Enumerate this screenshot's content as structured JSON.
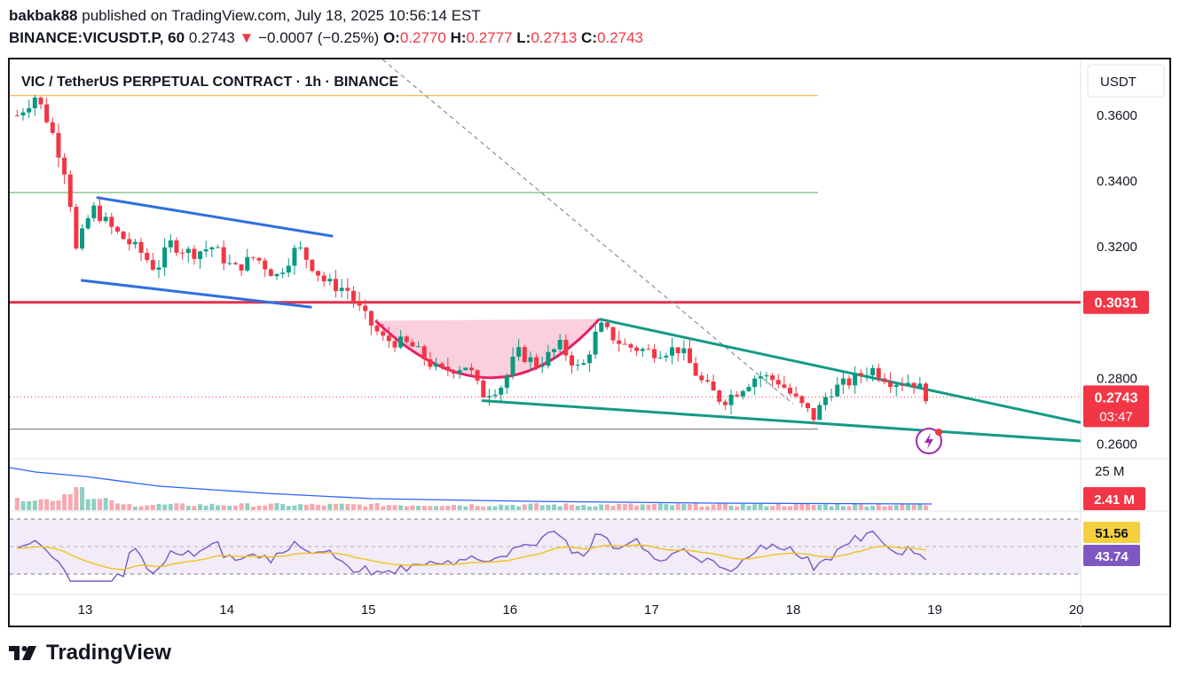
{
  "header": {
    "author": "bakbak88",
    "published_text": "published on TradingView.com, July 18, 2025 10:56:14 EST",
    "symbol": "BINANCE:VICUSDT.P, 60",
    "last": "0.2743",
    "change_arrow": "▼",
    "change": "−0.0007 (−0.25%)",
    "o_label": "O:",
    "o_value": "0.2770",
    "h_label": "H:",
    "h_value": "0.2777",
    "l_label": "L:",
    "l_value": "0.2713",
    "c_label": "C:",
    "c_value": "0.2743"
  },
  "footer": {
    "logo_text": "TradingView"
  },
  "chart_data": {
    "type": "candlestick",
    "title": "VIC / TetherUS PERPETUAL CONTRACT · 1h · BINANCE",
    "currency": "USDT",
    "x_ticks": [
      "13",
      "14",
      "15",
      "16",
      "17",
      "18",
      "19",
      "20"
    ],
    "y_ticks": [
      "0.3600",
      "0.3400",
      "0.3200",
      "0.2800",
      "0.2600"
    ],
    "ylim": [
      0.2555,
      0.377
    ],
    "price_labels": [
      {
        "text": "0.3031",
        "color": "#f23645"
      },
      {
        "text": "0.2743",
        "color": "#f23645"
      },
      {
        "text": "03:47",
        "color": "#f23645"
      }
    ],
    "horizontal_lines": [
      {
        "price": 0.366,
        "color": "#f5a623"
      },
      {
        "price": 0.3365,
        "color": "#4caf50"
      },
      {
        "price": 0.3031,
        "color": "#e0314b"
      },
      {
        "price": 0.2645,
        "color": "#6a6d78"
      }
    ],
    "close_path": [
      {
        "day": 12.52,
        "price": 0.36
      },
      {
        "day": 12.65,
        "price": 0.366
      },
      {
        "day": 12.75,
        "price": 0.357
      },
      {
        "day": 12.88,
        "price": 0.34
      },
      {
        "day": 12.93,
        "price": 0.318
      },
      {
        "day": 13.05,
        "price": 0.332
      },
      {
        "day": 13.2,
        "price": 0.325
      },
      {
        "day": 13.4,
        "price": 0.318
      },
      {
        "day": 13.5,
        "price": 0.313
      },
      {
        "day": 13.6,
        "price": 0.321
      },
      {
        "day": 13.75,
        "price": 0.318
      },
      {
        "day": 13.9,
        "price": 0.32
      },
      {
        "day": 14.05,
        "price": 0.313
      },
      {
        "day": 14.2,
        "price": 0.317
      },
      {
        "day": 14.35,
        "price": 0.311
      },
      {
        "day": 14.5,
        "price": 0.32
      },
      {
        "day": 14.7,
        "price": 0.309
      },
      {
        "day": 14.85,
        "price": 0.307
      },
      {
        "day": 14.95,
        "price": 0.3
      },
      {
        "day": 15.1,
        "price": 0.292
      },
      {
        "day": 15.3,
        "price": 0.29
      },
      {
        "day": 15.5,
        "price": 0.282
      },
      {
        "day": 15.7,
        "price": 0.284
      },
      {
        "day": 15.8,
        "price": 0.275
      },
      {
        "day": 15.95,
        "price": 0.278
      },
      {
        "day": 16.05,
        "price": 0.288
      },
      {
        "day": 16.2,
        "price": 0.284
      },
      {
        "day": 16.35,
        "price": 0.29
      },
      {
        "day": 16.5,
        "price": 0.282
      },
      {
        "day": 16.63,
        "price": 0.296
      },
      {
        "day": 16.8,
        "price": 0.29
      },
      {
        "day": 17.0,
        "price": 0.288
      },
      {
        "day": 17.2,
        "price": 0.289
      },
      {
        "day": 17.35,
        "price": 0.279
      },
      {
        "day": 17.5,
        "price": 0.273
      },
      {
        "day": 17.6,
        "price": 0.276
      },
      {
        "day": 17.75,
        "price": 0.281
      },
      {
        "day": 17.9,
        "price": 0.279
      },
      {
        "day": 18.05,
        "price": 0.272
      },
      {
        "day": 18.15,
        "price": 0.268
      },
      {
        "day": 18.25,
        "price": 0.276
      },
      {
        "day": 18.4,
        "price": 0.279
      },
      {
        "day": 18.55,
        "price": 0.283
      },
      {
        "day": 18.7,
        "price": 0.279
      },
      {
        "day": 18.85,
        "price": 0.279
      },
      {
        "day": 18.95,
        "price": 0.2743
      }
    ],
    "volume": {
      "label": "25 M",
      "last_label": "2.41 M"
    },
    "rsi": {
      "value_a": "51.56",
      "value_b": "43.74"
    }
  }
}
